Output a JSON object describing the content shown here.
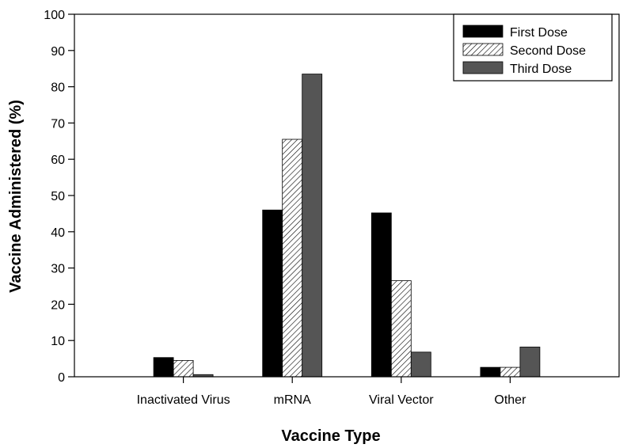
{
  "chart_data": {
    "type": "bar",
    "title": "",
    "xlabel": "Vaccine Type",
    "ylabel": "Vaccine Administered (%)",
    "ylim": [
      0,
      100
    ],
    "yticks": [
      0,
      10,
      20,
      30,
      40,
      50,
      60,
      70,
      80,
      90,
      100
    ],
    "categories": [
      "Inactivated Virus",
      "mRNA",
      "Viral Vector",
      "Other"
    ],
    "series": [
      {
        "name": "First Dose",
        "values": [
          5.3,
          46.0,
          45.2,
          2.6
        ],
        "fill": "solid",
        "color": "#000000"
      },
      {
        "name": "Second Dose",
        "values": [
          4.5,
          65.5,
          26.5,
          2.6
        ],
        "fill": "hatch",
        "color": "#000000"
      },
      {
        "name": "Third Dose",
        "values": [
          0.6,
          83.5,
          6.8,
          8.2
        ],
        "fill": "solid",
        "color": "#555555"
      }
    ],
    "grid": false,
    "legend_position": "top-right"
  }
}
